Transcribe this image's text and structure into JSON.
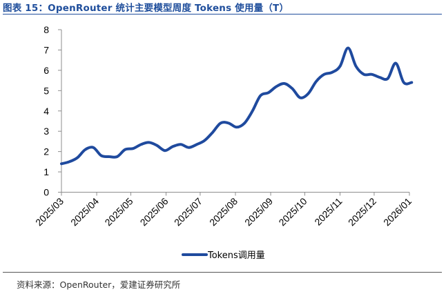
{
  "figure": {
    "title": "图表 15：OpenRouter 统计主要模型周度 Tokens 使用量（T）",
    "source": "资料来源：OpenRouter，爱建证券研究所"
  },
  "colors": {
    "title": "#1f4e9c",
    "series": "#1f4a9e"
  },
  "chart_data": {
    "type": "line",
    "title": "",
    "xlabel": "",
    "ylabel": "",
    "ylim": [
      0,
      8
    ],
    "y_ticks": [
      "0",
      "1",
      "2",
      "3",
      "4",
      "5",
      "6",
      "7",
      "8"
    ],
    "x_ticks": [
      "2025/03",
      "2025/04",
      "2025/05",
      "2025/06",
      "2025/07",
      "2025/08",
      "2025/09",
      "2025/10",
      "2025/11",
      "2025/12",
      "2026/01"
    ],
    "grid": false,
    "legend_position": "bottom",
    "series": [
      {
        "name": "Tokens调用量",
        "x": [
          "2025/03/01",
          "2025/03/08",
          "2025/03/15",
          "2025/03/22",
          "2025/03/29",
          "2025/04/05",
          "2025/04/12",
          "2025/04/19",
          "2025/04/26",
          "2025/05/03",
          "2025/05/10",
          "2025/05/17",
          "2025/05/24",
          "2025/05/31",
          "2025/06/07",
          "2025/06/14",
          "2025/06/21",
          "2025/06/28",
          "2025/07/05",
          "2025/07/12",
          "2025/07/19",
          "2025/07/26",
          "2025/08/02",
          "2025/08/09",
          "2025/08/16",
          "2025/08/23",
          "2025/08/30",
          "2025/09/06",
          "2025/09/13",
          "2025/09/20",
          "2025/09/27",
          "2025/10/04",
          "2025/10/11",
          "2025/10/18",
          "2025/10/25",
          "2025/11/01",
          "2025/11/08",
          "2025/11/15",
          "2025/11/22",
          "2025/11/29",
          "2025/12/06",
          "2025/12/13",
          "2025/12/20",
          "2025/12/27",
          "2026/01/03"
        ],
        "values": [
          1.4,
          1.5,
          1.7,
          2.1,
          2.2,
          1.8,
          1.75,
          1.75,
          2.1,
          2.15,
          2.35,
          2.45,
          2.3,
          2.05,
          2.25,
          2.35,
          2.2,
          2.35,
          2.55,
          2.95,
          3.4,
          3.4,
          3.2,
          3.4,
          4.0,
          4.75,
          4.9,
          5.2,
          5.35,
          5.1,
          4.65,
          4.85,
          5.45,
          5.8,
          5.9,
          6.2,
          7.1,
          6.2,
          5.8,
          5.8,
          5.65,
          5.6,
          6.35,
          5.4,
          5.4
        ]
      }
    ]
  }
}
